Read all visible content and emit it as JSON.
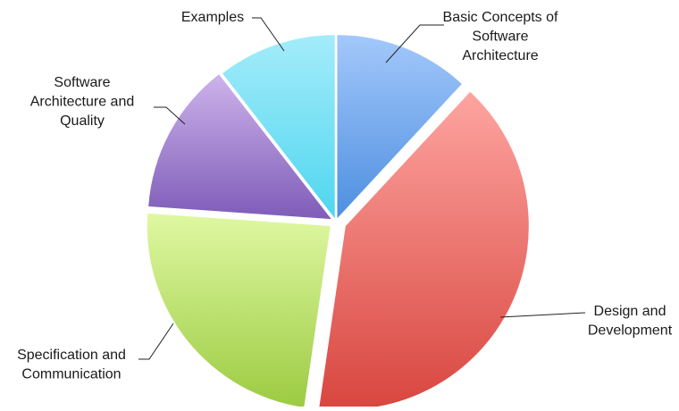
{
  "chart_data": {
    "type": "pie",
    "title": "",
    "labels_shown_as": "callouts",
    "slices": [
      {
        "label": [
          "Basic Concepts of",
          "Software",
          "Architecture"
        ],
        "value": 11.9,
        "color_top": "#a3c8fb",
        "color_bottom": "#4e8fe0"
      },
      {
        "label": [
          "Design and",
          "Development"
        ],
        "value": 40.4,
        "color_top": "#fea4a0",
        "color_bottom": "#d8463f"
      },
      {
        "label": [
          "Specification and",
          "Communication"
        ],
        "value": 23.8,
        "color_top": "#dff8a2",
        "color_bottom": "#9ccb42"
      },
      {
        "label": [
          "Software",
          "Architecture and",
          "Quality"
        ],
        "value": 13.4,
        "color_top": "#cdb3eb",
        "color_bottom": "#7e5cb8"
      },
      {
        "label": [
          "Examples"
        ],
        "value": 10.5,
        "color_top": "#a4ecfa",
        "color_bottom": "#4fd6ef"
      }
    ]
  }
}
